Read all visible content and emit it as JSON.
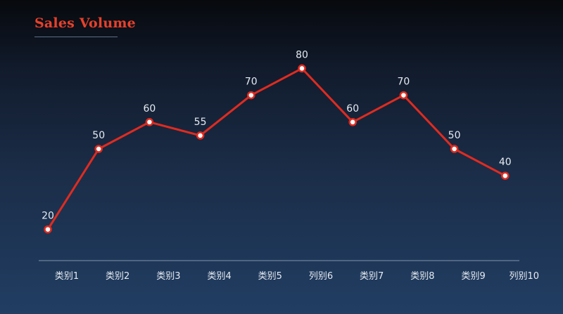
{
  "chart_data": {
    "type": "line",
    "title": "Sales Volume",
    "xlabel": "",
    "ylabel": "",
    "categories": [
      "类别1",
      "类别2",
      "类别3",
      "类别4",
      "类别5",
      "列别6",
      "类别7",
      "类别8",
      "类别9",
      "列别10"
    ],
    "series": [
      {
        "values": [
          20,
          50,
          60,
          55,
          70,
          80,
          60,
          70,
          50,
          40
        ],
        "color": "#e02b20"
      }
    ],
    "ylim": [
      0,
      100
    ],
    "grid": false,
    "legend": "none",
    "data_labels": true
  },
  "colors": {
    "line": "#e02b20",
    "marker_fill": "#ffffff",
    "title": "#e8402a",
    "axis": "#8193aa",
    "text": "#e6ebf2"
  }
}
